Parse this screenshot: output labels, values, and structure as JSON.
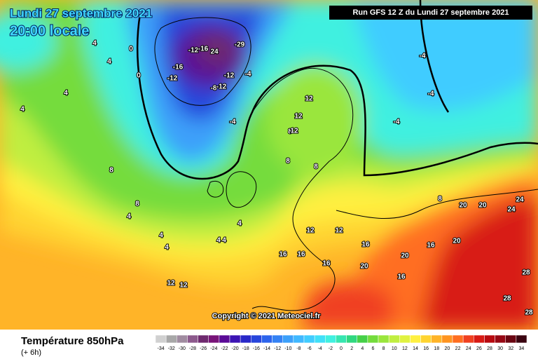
{
  "map": {
    "date": "Lundi 27 septembre 2021",
    "time": "20:00 locale",
    "run": "Run GFS 12 Z du Lundi 27 septembre 2021",
    "copyright": "Copyright © 2021 Meteociel.fr",
    "title": "Température 850hPa",
    "step": "(+ 6h)",
    "contour_labels": [
      -12,
      -16,
      24,
      -29,
      -12,
      -16,
      -8,
      -12,
      -4,
      -12,
      -4,
      -4,
      -4,
      -4,
      0,
      4,
      4,
      0,
      4,
      4,
      8,
      8,
      8,
      12,
      12,
      12,
      8,
      12,
      8,
      4,
      4,
      4,
      4,
      4,
      4,
      8,
      12,
      16,
      16,
      16,
      16,
      20,
      20,
      20,
      20,
      24,
      24,
      28,
      28,
      16,
      16,
      12,
      12,
      20,
      28
    ],
    "scale": {
      "ticks": [
        -34,
        -32,
        -30,
        -28,
        -26,
        -24,
        -22,
        -20,
        -18,
        -16,
        -14,
        -12,
        -10,
        -8,
        -6,
        -4,
        -2,
        0,
        2,
        4,
        6,
        8,
        10,
        12,
        14,
        16,
        18,
        20,
        22,
        24,
        26,
        28,
        30,
        32,
        34
      ],
      "colors": [
        "#d0d0d0",
        "#a8a8a8",
        "#a08ca0",
        "#8c5a8c",
        "#6e2a6e",
        "#781478",
        "#5a0a96",
        "#3c14b4",
        "#2828c8",
        "#2846dc",
        "#2c64ec",
        "#3482f4",
        "#3ca0fa",
        "#40b8ff",
        "#40ccff",
        "#40e0f8",
        "#40f0e0",
        "#36e6b0",
        "#30d880",
        "#46d048",
        "#74dc3c",
        "#9ae63c",
        "#c0ee40",
        "#e0f240",
        "#fff040",
        "#ffd430",
        "#ffb428",
        "#ff9420",
        "#ff6e20",
        "#f04020",
        "#d81a14",
        "#b80a10",
        "#960814",
        "#6a0612",
        "#3a0410"
      ]
    }
  }
}
